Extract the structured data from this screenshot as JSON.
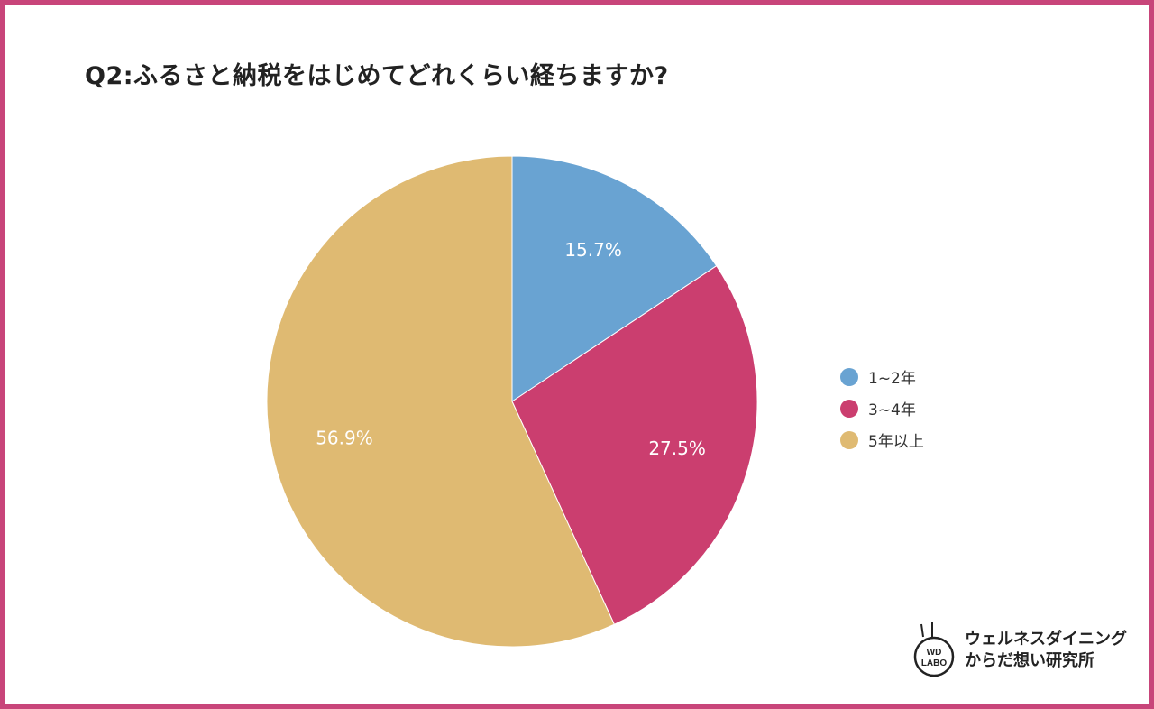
{
  "title": "Q2:ふるさと納税をはじめてどれくらい経ちますか?",
  "chart_data": {
    "type": "pie",
    "title": "Q2:ふるさと納税をはじめてどれくらい経ちますか?",
    "categories": [
      "1~2年",
      "3~4年",
      "5年以上"
    ],
    "values": [
      15.7,
      27.5,
      56.9
    ],
    "data_labels": [
      "15.7%",
      "27.5%",
      "56.9%"
    ],
    "colors": [
      "#69a3d2",
      "#cb3e6f",
      "#dfba72"
    ],
    "start": "top",
    "direction": "clockwise",
    "legend_position": "right"
  },
  "logo": {
    "mark_text": "WD LABO",
    "line1": "ウェルネスダイニング",
    "line2": "からだ想い研究所"
  },
  "colors": {
    "border": "#c8457a"
  }
}
